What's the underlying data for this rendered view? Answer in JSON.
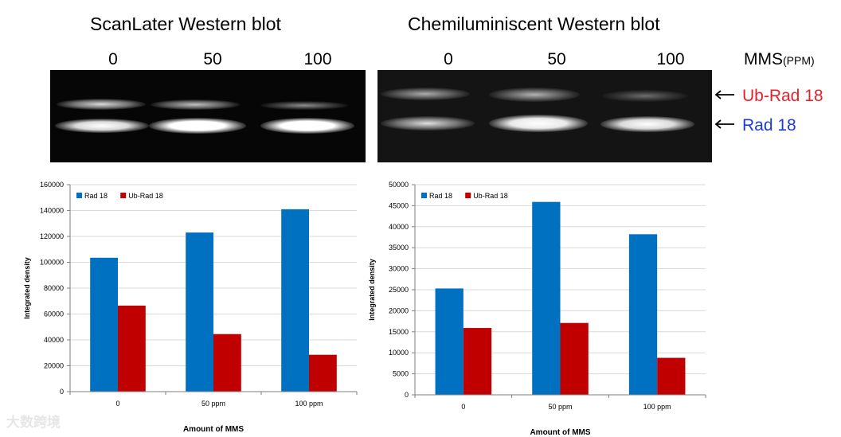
{
  "panels": [
    {
      "title": "ScanLater Western blot",
      "lanes": [
        "0",
        "50",
        "100"
      ]
    },
    {
      "title": "Chemiluminiscent Western blot",
      "lanes": [
        "0",
        "50",
        "100"
      ]
    }
  ],
  "mms_label": {
    "main": "MMS",
    "unit": "(PPM)"
  },
  "band_labels": [
    {
      "text": "Ub-Rad 18",
      "color": "#e8202a"
    },
    {
      "text": "Rad 18",
      "color": "#1f3bd6"
    }
  ],
  "colors": {
    "rad18": "#0070c0",
    "ubrad18": "#c00000",
    "grid": "#d9d9d9",
    "axis": "#7f7f7f"
  },
  "chart_data": [
    {
      "type": "bar",
      "categories": [
        "0",
        "50 ppm",
        "100 ppm"
      ],
      "series": [
        {
          "name": "Rad 18",
          "values": [
            103500,
            123000,
            141000
          ]
        },
        {
          "name": "Ub-Rad 18",
          "values": [
            66500,
            44500,
            28500
          ]
        }
      ],
      "title": "",
      "xlabel": "Amount of MMS",
      "ylabel": "Integrated density",
      "ylim": [
        0,
        160000
      ],
      "yticks": [
        "0",
        "20000",
        "40000",
        "60000",
        "80000",
        "100000",
        "120000",
        "140000",
        "160000"
      ],
      "legend": "top-left",
      "grid": true
    },
    {
      "type": "bar",
      "categories": [
        "0",
        "50 ppm",
        "100 ppm"
      ],
      "series": [
        {
          "name": "Rad 18",
          "values": [
            25300,
            45900,
            38200
          ]
        },
        {
          "name": "Ub-Rad 18",
          "values": [
            15900,
            17100,
            8800
          ]
        }
      ],
      "title": "",
      "xlabel": "Amount of  MMS",
      "ylabel": "Integrated density",
      "ylim": [
        0,
        50000
      ],
      "yticks": [
        "0",
        "5000",
        "10000",
        "15000",
        "20000",
        "25000",
        "30000",
        "35000",
        "40000",
        "45000",
        "50000"
      ],
      "legend": "top-left",
      "grid": true
    }
  ],
  "watermark": "大数跨境"
}
